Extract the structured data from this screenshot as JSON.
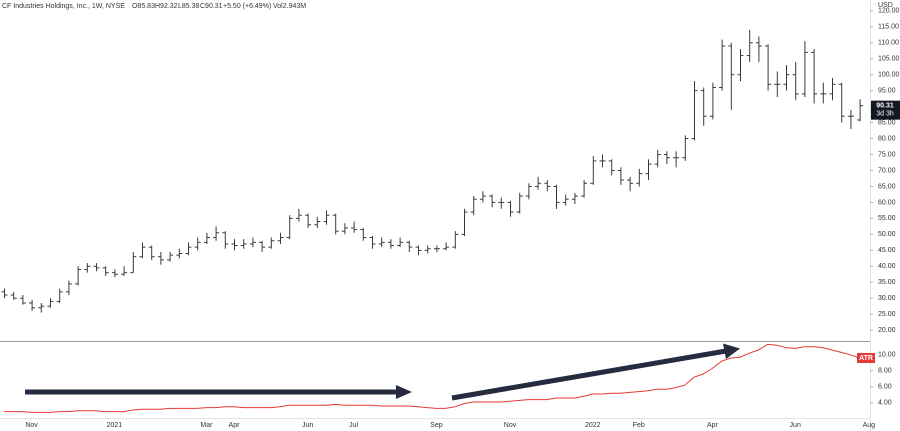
{
  "header": {
    "symbol": "CF Industries Holdings, Inc., 1W, NYSE",
    "open": "O85.83",
    "high": "H92.32",
    "low": "L85.38",
    "close": "C90.31",
    "change": "+5.50 (+6.49%)",
    "volume": "Vol2.943M"
  },
  "price_tag": {
    "countdown": "3d 3h"
  },
  "chart_data": [
    {
      "type": "ohlc",
      "y_unit": "USD",
      "color": "#363a45",
      "categories": [
        null,
        null,
        null,
        "Nov",
        null,
        null,
        null,
        null,
        null,
        null,
        null,
        null,
        "2021",
        null,
        null,
        null,
        null,
        null,
        null,
        null,
        null,
        null,
        "Mar",
        null,
        null,
        "Apr",
        null,
        null,
        null,
        null,
        null,
        null,
        null,
        "Jun",
        null,
        null,
        null,
        null,
        "Jul",
        null,
        null,
        null,
        null,
        null,
        null,
        null,
        null,
        "Sep",
        null,
        null,
        null,
        null,
        null,
        null,
        null,
        "Nov",
        null,
        null,
        null,
        null,
        null,
        null,
        null,
        null,
        "2022",
        null,
        null,
        null,
        null,
        "Feb",
        null,
        null,
        null,
        null,
        null,
        null,
        null,
        "Apr",
        null,
        null,
        null,
        null,
        null,
        null,
        null,
        null,
        "Jun",
        null,
        null,
        null,
        null,
        null,
        null,
        null,
        "Aug"
      ],
      "open": [
        32,
        31,
        30,
        28.5,
        27,
        27.5,
        29,
        32,
        34.5,
        39,
        40,
        39.5,
        38,
        37.5,
        38,
        43,
        46,
        43,
        42,
        43.5,
        44,
        46,
        47.5,
        49,
        50.5,
        47,
        46.5,
        47,
        47.5,
        46,
        48,
        49,
        55,
        56,
        53,
        54,
        56,
        51,
        52,
        51.5,
        49,
        47,
        47.5,
        46.5,
        47.5,
        46,
        45,
        45.5,
        45.5,
        46,
        50,
        57,
        61,
        62,
        60,
        60,
        57,
        62,
        65,
        66,
        65,
        60,
        61,
        62,
        66,
        73,
        73,
        70,
        67,
        66,
        69,
        72,
        75,
        74,
        74,
        80,
        95,
        87,
        96,
        109,
        100,
        106,
        110,
        109,
        97,
        97,
        100,
        94,
        107,
        94,
        94,
        97,
        87,
        85.83,
        null
      ],
      "high": [
        33,
        32,
        31,
        29.5,
        28.5,
        30,
        33,
        35.5,
        40,
        41,
        41,
        40,
        39,
        40,
        44.5,
        47.5,
        46.5,
        44.5,
        44.5,
        45.5,
        47.5,
        49,
        50.5,
        52.5,
        51,
        48.5,
        48.5,
        49,
        48,
        49,
        50.5,
        56,
        58,
        56.5,
        55.5,
        57.5,
        56.5,
        53.5,
        54,
        52,
        49.5,
        49,
        48.5,
        49,
        48,
        46.5,
        46.5,
        46.5,
        47.5,
        51,
        58,
        62,
        63.5,
        62.5,
        61.5,
        60.5,
        63,
        66,
        68,
        67,
        65.5,
        62.5,
        63,
        67,
        74.5,
        75,
        73.5,
        71,
        68,
        70.5,
        73.5,
        76.5,
        76,
        76,
        81,
        98,
        96,
        97.5,
        111,
        110,
        108,
        114,
        112,
        109.5,
        101,
        103,
        104,
        110.5,
        108,
        97.5,
        99,
        97.5,
        89,
        92.32,
        null
      ],
      "low": [
        30,
        29.5,
        28,
        26,
        25.5,
        27,
        28.5,
        31,
        34,
        38,
        38.5,
        37,
        36.5,
        37,
        38,
        42.5,
        42,
        40.5,
        41.5,
        42.5,
        43.5,
        45,
        47,
        48,
        45.5,
        45,
        45.5,
        46,
        44.5,
        45.5,
        47,
        48.5,
        54,
        52,
        52,
        53,
        50,
        50,
        50.5,
        48,
        45.5,
        46,
        45.5,
        46,
        44.5,
        43.5,
        44,
        44.5,
        45,
        45.5,
        49.5,
        56,
        60,
        58.5,
        58,
        55.5,
        56.5,
        61,
        64,
        63.5,
        58,
        59,
        59.5,
        61.5,
        65.5,
        71,
        68.5,
        65.5,
        63.5,
        65,
        67,
        71,
        72,
        71,
        73,
        79.5,
        84,
        86,
        95,
        89,
        98,
        104,
        104,
        95,
        93,
        95,
        92,
        93,
        91,
        91,
        92,
        85,
        83,
        85.38,
        null
      ],
      "close": [
        31,
        30,
        28.5,
        27,
        27.5,
        29,
        32,
        34.5,
        39,
        40,
        39.5,
        38,
        37.5,
        38,
        43,
        46,
        43,
        42,
        43.5,
        44,
        46,
        47.5,
        49,
        50.5,
        47,
        46.5,
        47,
        47.5,
        46,
        48,
        49,
        55,
        56,
        53,
        54,
        56,
        51,
        52,
        51.5,
        49,
        47,
        47.5,
        46.5,
        47.5,
        46,
        45,
        45.5,
        45.5,
        46,
        50,
        57,
        61,
        62,
        60,
        60,
        57,
        62,
        65,
        66,
        65,
        60,
        61,
        62,
        66,
        73,
        73,
        70,
        67,
        66,
        69,
        72,
        75,
        74,
        74,
        80,
        95,
        87,
        96,
        109,
        100,
        106,
        110,
        109,
        97,
        97,
        100,
        94,
        107,
        94,
        94,
        97,
        87,
        87,
        90.31,
        null
      ],
      "ylim": [
        16.6,
        123.4
      ],
      "yticks": [
        {
          "value": 20,
          "label": "20.00"
        },
        {
          "value": 25,
          "label": "25.00"
        },
        {
          "value": 30,
          "label": "30.00"
        },
        {
          "value": 35,
          "label": "35.00"
        },
        {
          "value": 40,
          "label": "40.00"
        },
        {
          "value": 45,
          "label": "45.00"
        },
        {
          "value": 50,
          "label": "50.00"
        },
        {
          "value": 55,
          "label": "55.00"
        },
        {
          "value": 60,
          "label": "60.00"
        },
        {
          "value": 65,
          "label": "65.00"
        },
        {
          "value": 70,
          "label": "70.00"
        },
        {
          "value": 75,
          "label": "75.00"
        },
        {
          "value": 80,
          "label": "80.00"
        },
        {
          "value": 85,
          "label": "85.00"
        },
        {
          "value": 90,
          "label": "90.00"
        },
        {
          "value": 95,
          "label": "95.00"
        },
        {
          "value": 100,
          "label": "100.00"
        },
        {
          "value": 105,
          "label": "105.00"
        },
        {
          "value": 110,
          "label": "110.00"
        },
        {
          "value": 115,
          "label": "115.00"
        },
        {
          "value": 120,
          "label": "120.00"
        }
      ],
      "grid": false
    },
    {
      "type": "line",
      "series": [
        {
          "name": "ATR",
          "color": "#e53935",
          "values": [
            2.9,
            2.9,
            2.9,
            2.8,
            2.8,
            2.8,
            2.9,
            2.9,
            3.0,
            3.0,
            3.0,
            2.9,
            2.9,
            2.9,
            3.1,
            3.2,
            3.2,
            3.2,
            3.3,
            3.3,
            3.3,
            3.3,
            3.4,
            3.4,
            3.5,
            3.5,
            3.4,
            3.4,
            3.4,
            3.4,
            3.5,
            3.7,
            3.7,
            3.7,
            3.7,
            3.7,
            3.8,
            3.7,
            3.7,
            3.7,
            3.7,
            3.6,
            3.6,
            3.6,
            3.6,
            3.5,
            3.4,
            3.3,
            3.3,
            3.5,
            3.9,
            4.1,
            4.1,
            4.1,
            4.1,
            4.2,
            4.3,
            4.4,
            4.4,
            4.4,
            4.6,
            4.6,
            4.6,
            4.8,
            5.1,
            5.1,
            5.2,
            5.2,
            5.3,
            5.4,
            5.5,
            5.7,
            5.7,
            5.9,
            6.2,
            7.2,
            7.6,
            8.3,
            9.2,
            9.6,
            9.7,
            10.2,
            10.6,
            11.3,
            11.2,
            10.9,
            10.8,
            11.0,
            11.0,
            10.9,
            10.6,
            10.3,
            10.0,
            9.6,
            null
          ]
        }
      ],
      "ylim": [
        2.1,
        11.6
      ],
      "yticks": [
        {
          "value": 4,
          "label": "4.00"
        },
        {
          "value": 6,
          "label": "6.00"
        },
        {
          "value": 8,
          "label": "8.00"
        },
        {
          "value": 10,
          "label": "10.00"
        }
      ],
      "grid": false
    }
  ]
}
